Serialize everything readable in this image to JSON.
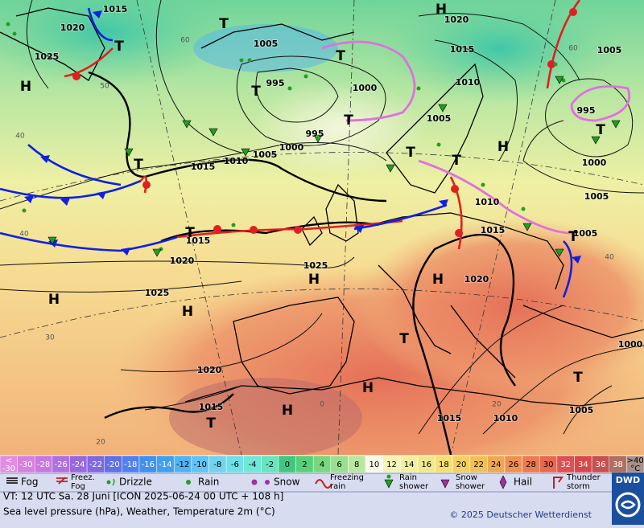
{
  "map": {
    "isobar_labels": [
      1015,
      1020,
      1025,
      1005,
      995,
      1000,
      995,
      1000,
      1005,
      1010,
      1015,
      1020,
      1015,
      1010,
      1005,
      1005,
      995,
      1000,
      1005,
      1010,
      1015,
      1005,
      1015,
      1020,
      1025,
      1025,
      1020,
      1000,
      1020,
      1015,
      1015,
      1010,
      1005
    ],
    "systems": [
      "H",
      "T",
      "T",
      "T",
      "H",
      "T",
      "T",
      "H",
      "T",
      "T",
      "T",
      "H",
      "H",
      "H",
      "H",
      "T",
      "H",
      "H",
      "T",
      "T",
      "T",
      "T",
      "T"
    ],
    "temperature_labels": [
      60,
      50,
      40,
      40,
      30,
      20,
      40,
      60,
      0,
      20
    ]
  },
  "color_scale": {
    "low_label": "<",
    "high_label": ">40",
    "unit": "°C",
    "steps": [
      {
        "value": -30,
        "color": "#e48ae4"
      },
      {
        "value": -30,
        "color": "#d880e0"
      },
      {
        "value": -28,
        "color": "#c878e0"
      },
      {
        "value": -26,
        "color": "#b070e0"
      },
      {
        "value": -24,
        "color": "#9868e0"
      },
      {
        "value": -22,
        "color": "#8068e0"
      },
      {
        "value": -20,
        "color": "#6070e8"
      },
      {
        "value": -18,
        "color": "#5080f0"
      },
      {
        "value": -16,
        "color": "#4090f0"
      },
      {
        "value": -14,
        "color": "#40a0f0"
      },
      {
        "value": -12,
        "color": "#50b4f4"
      },
      {
        "value": -10,
        "color": "#60c4f4"
      },
      {
        "value": -8,
        "color": "#70d4f0"
      },
      {
        "value": -6,
        "color": "#70e0e8"
      },
      {
        "value": -4,
        "color": "#70e8d8"
      },
      {
        "value": -2,
        "color": "#68e4c0"
      },
      {
        "value": 0,
        "color": "#40c880"
      },
      {
        "value": 2,
        "color": "#58d078"
      },
      {
        "value": 4,
        "color": "#78d880"
      },
      {
        "value": 6,
        "color": "#98e090"
      },
      {
        "value": 8,
        "color": "#b8e8a0"
      },
      {
        "value": 10,
        "color": "#fafae8"
      },
      {
        "value": 12,
        "color": "#f4f4b8"
      },
      {
        "value": 14,
        "color": "#f2f0a0"
      },
      {
        "value": 16,
        "color": "#f0e890"
      },
      {
        "value": 18,
        "color": "#f4e070"
      },
      {
        "value": 20,
        "color": "#f4d060"
      },
      {
        "value": 22,
        "color": "#f2c058"
      },
      {
        "value": 24,
        "color": "#f0a850"
      },
      {
        "value": 26,
        "color": "#f09050"
      },
      {
        "value": 28,
        "color": "#ec7c50"
      },
      {
        "value": 30,
        "color": "#e86850"
      },
      {
        "value": 32,
        "color": "#e05050"
      },
      {
        "value": 34,
        "color": "#d84848"
      },
      {
        "value": 36,
        "color": "#c85050"
      },
      {
        "value": 38,
        "color": "#b07060"
      },
      {
        "value": 40,
        "color": "#a89088"
      }
    ]
  },
  "legend_items": [
    "Fog",
    "Freez. Fog",
    "Drizzle",
    "Rain",
    "Snow",
    "Freezing rain",
    "Rain shower",
    "Snow shower",
    "Hail",
    "Thunder storm"
  ],
  "footer": {
    "valid_time": "VT: 12 UTC Sa.  28 Juni [ICON 2025-06-24  00 UTC + 108 h]",
    "description": "Sea level pressure (hPa), Weather, Temperature 2m (°C)",
    "copyright": "© 2025 Deutscher Wetterdienst",
    "logo": "DWD"
  }
}
